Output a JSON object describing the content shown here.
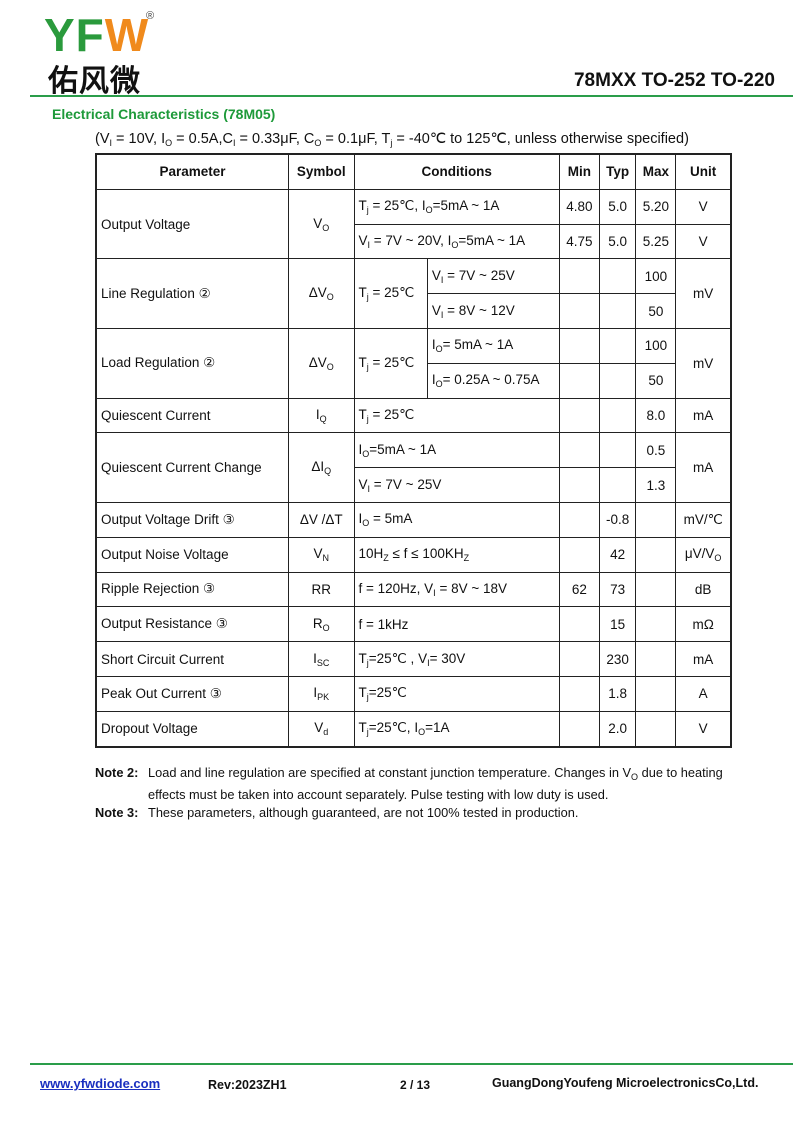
{
  "header": {
    "logo_letters": "YF",
    "logo_mark": "W",
    "registered": "®",
    "logo_chinese": "佑风微",
    "title": "78MXX TO-252 TO-220"
  },
  "section_title": "Electrical Characteristics (78M05)",
  "test_conditions": [
    "(V",
    "I",
    " = 10V, I",
    "O",
    " = 0.5A,C",
    "I",
    " = 0.33μF, C",
    "O",
    " = 0.1μF, T",
    "j",
    " = -40℃ to 125℃, unless otherwise specified)"
  ],
  "table": {
    "headers": [
      "Parameter",
      "Symbol",
      "Conditions",
      "Min",
      "Typ",
      "Max",
      "Unit"
    ],
    "groups": [
      {
        "parameter": "Output Voltage",
        "symbol": [
          "V",
          "O"
        ],
        "lines": [
          {
            "condition": [
              "T",
              "j",
              " = 25℃, I",
              "O",
              "=5mA ~ 1A"
            ],
            "min": "4.80",
            "typ": "5.0",
            "max": "5.20",
            "unit": "V"
          },
          {
            "condition": [
              "V",
              "I",
              " = 7V ~ 20V, I",
              "O",
              "=5mA ~ 1A"
            ],
            "min": "4.75",
            "typ": "5.0",
            "max": "5.25",
            "unit": "V"
          }
        ]
      },
      {
        "parameter": "Line Regulation ②",
        "symbol": [
          "ΔV",
          "O"
        ],
        "condition": [
          "T",
          "j",
          " = 25℃"
        ],
        "unit": "mV",
        "lines": [
          {
            "condition": [
              "V",
              "I",
              " = 7V ~ 25V"
            ],
            "max": "100"
          },
          {
            "condition": [
              "V",
              "I",
              " = 8V ~ 12V"
            ],
            "max": "50"
          }
        ]
      },
      {
        "parameter": "Load Regulation ②",
        "symbol": [
          "ΔV",
          "O"
        ],
        "condition": [
          "T",
          "j",
          " = 25℃"
        ],
        "unit": "mV",
        "lines": [
          {
            "condition": [
              "I",
              "O",
              "= 5mA ~ 1A"
            ],
            "max": "100"
          },
          {
            "condition": [
              "I",
              "O",
              "= 0.25A ~ 0.75A"
            ],
            "max": "50"
          }
        ]
      },
      {
        "parameter": "Quiescent Current",
        "symbol": [
          "I",
          "Q"
        ],
        "lines": [
          {
            "condition": [
              "T",
              "j",
              " = 25℃"
            ],
            "max": "8.0",
            "unit": "mA"
          }
        ]
      },
      {
        "parameter": "Quiescent Current Change",
        "symbol": [
          "ΔI",
          "Q"
        ],
        "unit": "mA",
        "lines": [
          {
            "condition": [
              "I",
              "O",
              "=5mA ~ 1A"
            ],
            "max": "0.5"
          },
          {
            "condition": [
              "V",
              "I",
              " = 7V ~ 25V"
            ],
            "max": "1.3"
          }
        ]
      },
      {
        "parameter": "Output Voltage Drift ③",
        "symbol": "ΔV /ΔT",
        "lines": [
          {
            "condition": [
              "I",
              "O",
              " = 5mA"
            ],
            "typ": "-0.8",
            "unit": "mV/℃"
          }
        ]
      },
      {
        "parameter": "Output Noise Voltage",
        "symbol": [
          "V",
          "N"
        ],
        "lines": [
          {
            "condition": [
              "10H",
              "Z",
              " ≤ f ≤ 100KH",
              "Z"
            ],
            "typ": "42",
            "unit": [
              "μV/V",
              "O"
            ]
          }
        ]
      },
      {
        "parameter": "Ripple Rejection ③",
        "symbol": "RR",
        "lines": [
          {
            "condition": [
              "f = 120Hz, V",
              "I",
              " = 8V ~ 18V"
            ],
            "min": "62",
            "typ": "73",
            "unit": "dB"
          }
        ]
      },
      {
        "parameter": "Output Resistance ③",
        "symbol": [
          "R",
          "O"
        ],
        "lines": [
          {
            "condition": "f = 1kHz",
            "typ": "15",
            "unit": "mΩ"
          }
        ]
      },
      {
        "parameter": "Short Circuit Current",
        "symbol": [
          "I",
          "SC"
        ],
        "lines": [
          {
            "condition": [
              "T",
              "j",
              "=25℃ , V",
              "I",
              "= 30V"
            ],
            "typ": "230",
            "unit": "mA"
          }
        ]
      },
      {
        "parameter": "Peak Out Current ③",
        "symbol": [
          "I",
          "PK"
        ],
        "lines": [
          {
            "condition": [
              "T",
              "j",
              "=25℃"
            ],
            "typ": "1.8",
            "unit": "A"
          }
        ]
      },
      {
        "parameter": "Dropout Voltage",
        "symbol": [
          "V",
          "d"
        ],
        "lines": [
          {
            "condition": [
              "T",
              "j",
              "=25℃, I",
              "O",
              "=1A"
            ],
            "typ": "2.0",
            "unit": "V"
          }
        ]
      }
    ]
  },
  "notes": [
    {
      "label": "Note 2:",
      "text": [
        "Load and line regulation are specified at constant junction temperature. Changes in V",
        "O",
        " due to heating effects must be taken into account separately. Pulse testing with low duty is used."
      ]
    },
    {
      "label": "Note 3:",
      "text": "These parameters, although guaranteed, are not 100% tested in production."
    }
  ],
  "footer": {
    "website": "www.yfwdiode.com",
    "revision": "Rev:2023ZH1",
    "page": "2 / 13",
    "company": "GuangDongYoufeng MicroelectronicsCo,Ltd."
  }
}
